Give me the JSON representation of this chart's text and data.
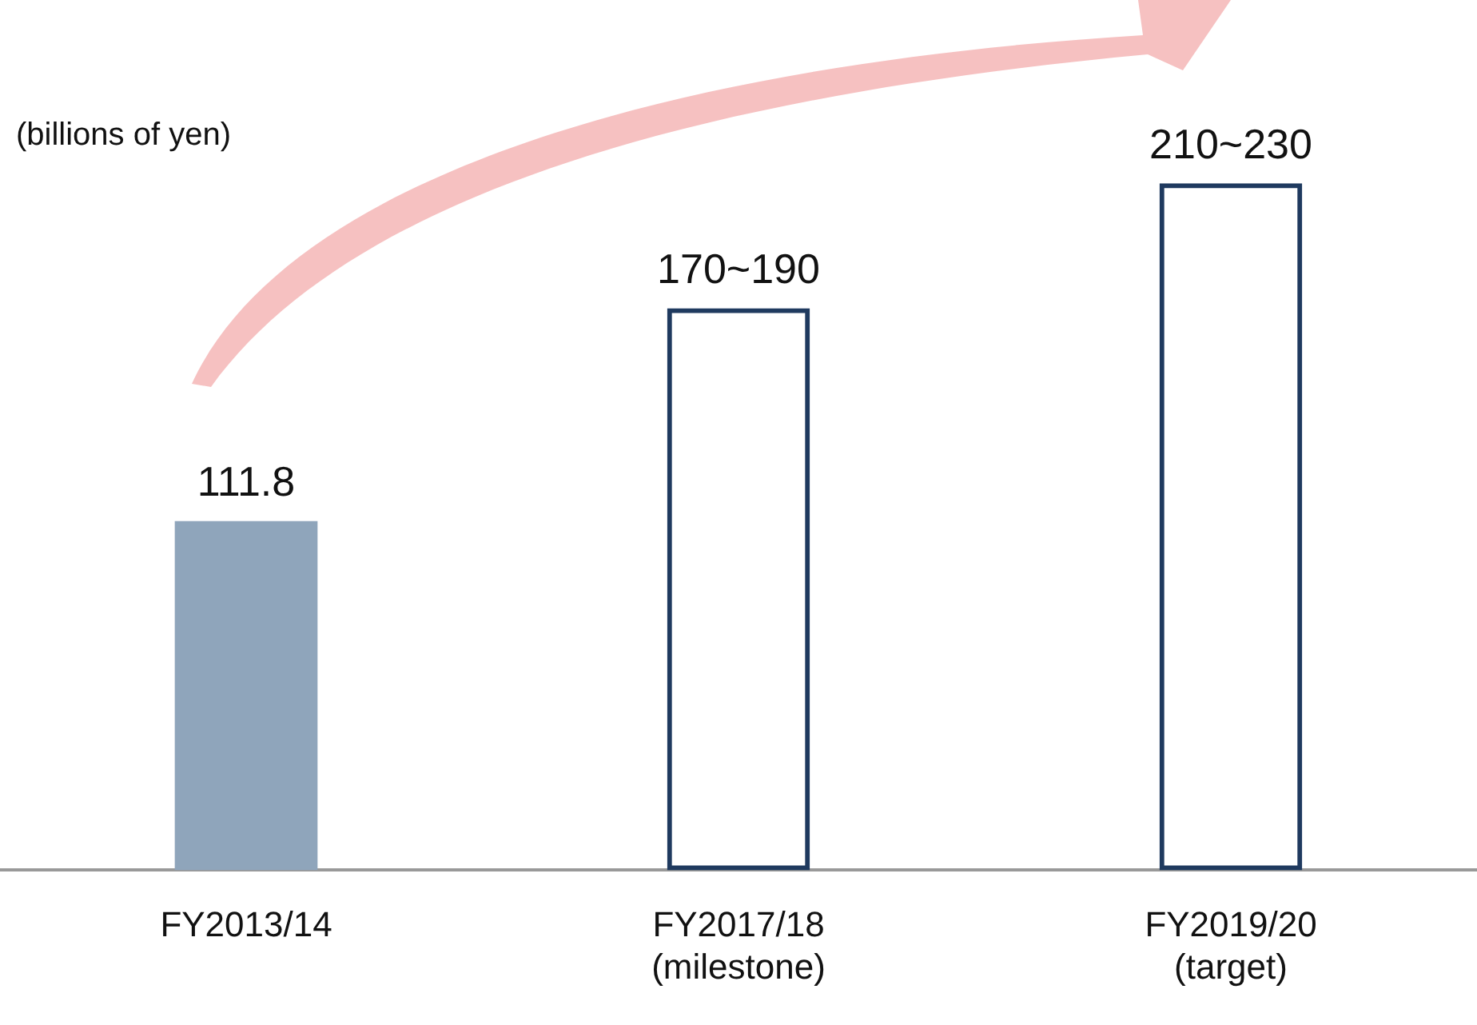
{
  "chart_data": {
    "type": "bar",
    "ylabel": "(billions of yen)",
    "stacked": true,
    "categories": [
      "FY2013/14",
      "FY2017/18\n(milestone)",
      "FY2019/20\n(target)"
    ],
    "series": [
      {
        "color": "#8fa5bb",
        "values": [
          111.8,
          null,
          null
        ],
        "value_labels": [
          "111.8",
          null,
          null
        ],
        "line_style": "solid"
      },
      {
        "color": "#1f3a5f",
        "values": [
          null,
          180,
          220
        ],
        "line_style": "dashed"
      }
    ],
    "annotations": [
      {
        "text": "170~190",
        "x": "FY2017/18\n(milestone)",
        "y": 180
      },
      {
        "text": "210~230",
        "x": "FY2019/20\n(target)",
        "y": 220
      }
    ],
    "grid": false,
    "legend": false
  }
}
